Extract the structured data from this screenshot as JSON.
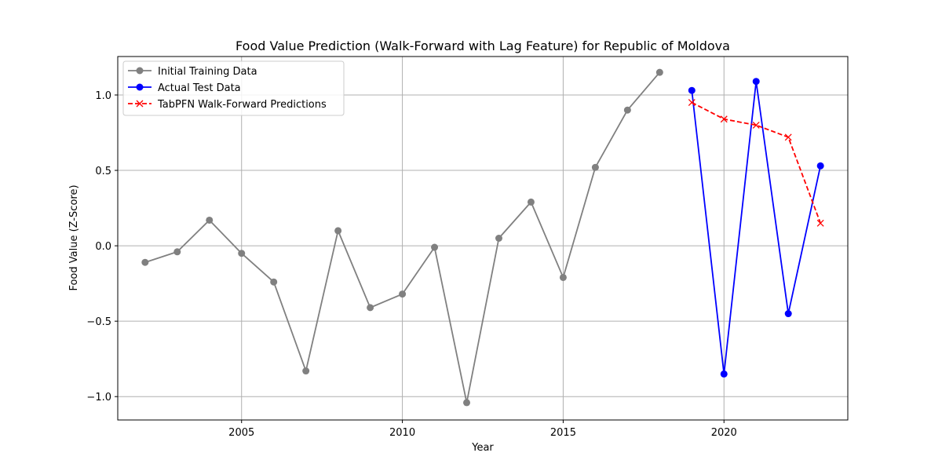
{
  "chart_data": {
    "type": "line",
    "title": "Food Value Prediction (Walk-Forward with Lag Feature) for Republic of Moldova",
    "xlabel": "Year",
    "ylabel": "Food Value (Z-Score)",
    "xlim": [
      2001.15,
      2023.85
    ],
    "ylim": [
      -1.155,
      1.255
    ],
    "xticks": [
      2005,
      2010,
      2015,
      2020
    ],
    "yticks": [
      -1.0,
      -0.5,
      0.0,
      0.5,
      1.0
    ],
    "ytick_labels": [
      "−1.0",
      "−0.5",
      "0.0",
      "0.5",
      "1.0"
    ],
    "grid": true,
    "legend_position": "top-left",
    "series": [
      {
        "name": "Initial Training Data",
        "color": "#808080",
        "line_style": "solid",
        "marker": "circle",
        "x": [
          2002,
          2003,
          2004,
          2005,
          2006,
          2007,
          2008,
          2009,
          2010,
          2011,
          2012,
          2013,
          2014,
          2015,
          2016,
          2017,
          2018
        ],
        "values": [
          -0.11,
          -0.04,
          0.17,
          -0.05,
          -0.24,
          -0.83,
          0.1,
          -0.41,
          -0.32,
          -0.01,
          -1.04,
          0.05,
          0.29,
          -0.21,
          0.52,
          0.9,
          1.15
        ]
      },
      {
        "name": "Actual Test Data",
        "color": "#0000ff",
        "line_style": "solid",
        "marker": "circle",
        "x": [
          2019,
          2020,
          2021,
          2022,
          2023
        ],
        "values": [
          1.03,
          -0.85,
          1.09,
          -0.45,
          0.53
        ]
      },
      {
        "name": "TabPFN Walk-Forward Predictions",
        "color": "#ff0000",
        "line_style": "dashed",
        "marker": "x",
        "x": [
          2019,
          2020,
          2021,
          2022,
          2023
        ],
        "values": [
          0.95,
          0.84,
          0.8,
          0.72,
          0.15
        ]
      }
    ]
  }
}
